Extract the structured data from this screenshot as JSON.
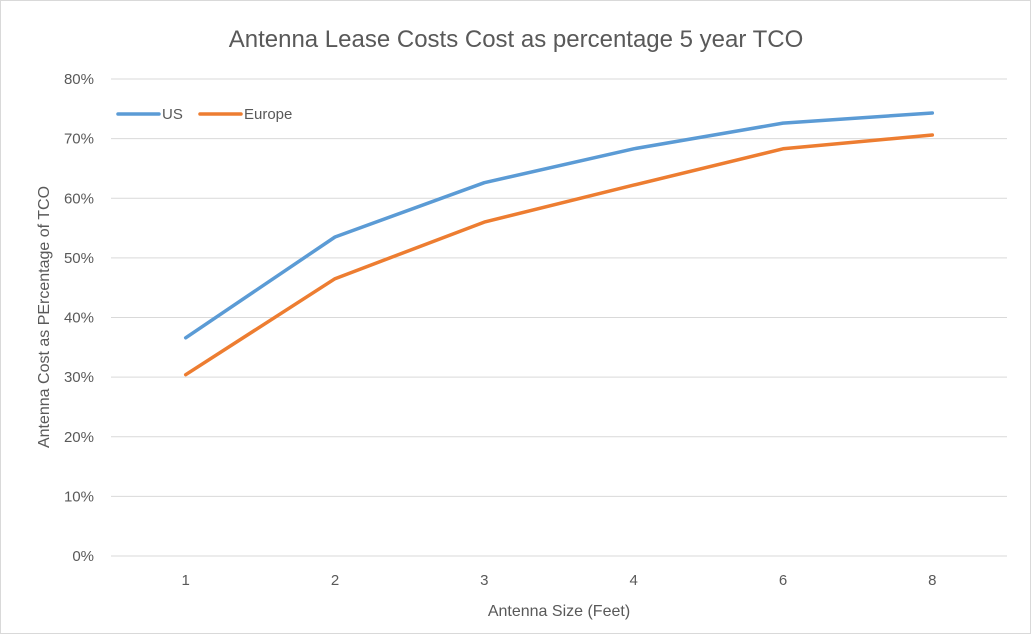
{
  "chart_data": {
    "type": "line",
    "title": "Antenna Lease Costs Cost as percentage 5 year TCO",
    "xlabel": "Antenna Size (Feet)",
    "ylabel": "Antenna Cost as PErcentage of TCO",
    "categories": [
      "1",
      "2",
      "3",
      "4",
      "6",
      "8"
    ],
    "ylim": [
      0,
      80
    ],
    "yticks": [
      0,
      10,
      20,
      30,
      40,
      50,
      60,
      70,
      80
    ],
    "ytick_labels": [
      "0%",
      "10%",
      "20%",
      "30%",
      "40%",
      "50%",
      "60%",
      "70%",
      "80%"
    ],
    "grid": true,
    "legend_position": "top-left",
    "series": [
      {
        "name": "US",
        "color": "#5b9bd5",
        "values": [
          36.6,
          53.5,
          62.6,
          68.3,
          72.6,
          74.3
        ]
      },
      {
        "name": "Europe",
        "color": "#ed7d31",
        "values": [
          30.4,
          46.5,
          56.0,
          62.2,
          68.3,
          70.6
        ]
      }
    ]
  }
}
